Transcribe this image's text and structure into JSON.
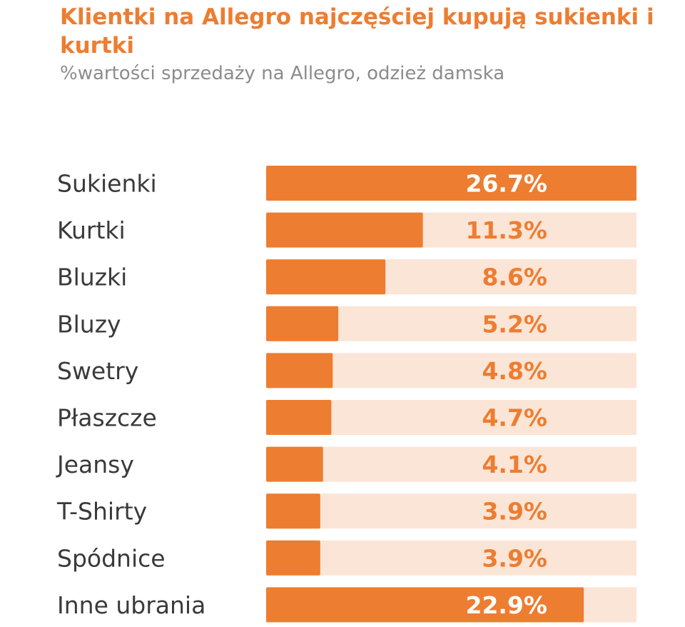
{
  "chart_data": {
    "type": "bar",
    "orientation": "horizontal",
    "title": "Klientki na Allegro najczęściej kupują sukienki i kurtki",
    "subtitle": "%wartości sprzedaży na Allegro, odzież damska",
    "categories": [
      "Sukienki",
      "Kurtki",
      "Bluzki",
      "Bluzy",
      "Swetry",
      "Płaszcze",
      "Jeansy",
      "T-Shirty",
      "Spódnice",
      "Inne ubrania"
    ],
    "values": [
      26.7,
      11.3,
      8.6,
      5.2,
      4.8,
      4.7,
      4.1,
      3.9,
      3.9,
      22.9
    ],
    "value_labels": [
      "26.7%",
      "11.3%",
      "8.6%",
      "5.2%",
      "4.8%",
      "4.7%",
      "4.1%",
      "3.9%",
      "3.9%",
      "22.9%"
    ],
    "xlim": [
      0,
      26.7
    ],
    "grid": false,
    "legend": "none",
    "colors": {
      "bar": "#ED7D31",
      "track": "#FBE5D6",
      "title": "#ED7D31",
      "subtitle": "#8C8C8C",
      "category_text": "#3A3A3A",
      "value_text_on_bar": "#FFFFFF",
      "value_text_on_track": "#ED7D31"
    }
  }
}
